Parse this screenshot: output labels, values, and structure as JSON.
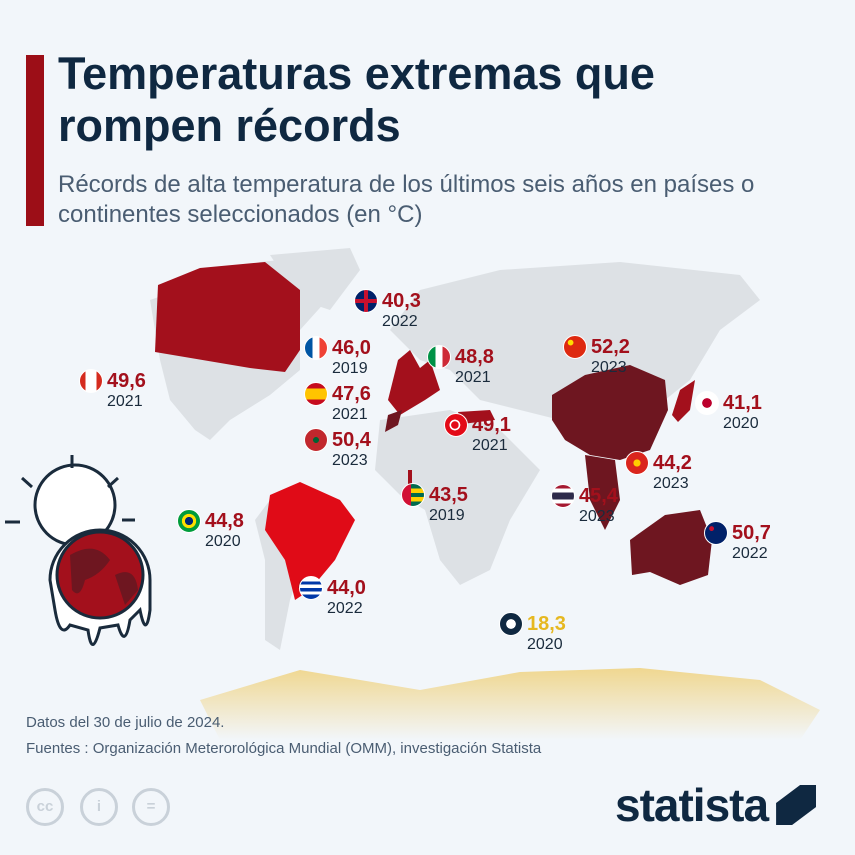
{
  "header": {
    "title": "Temperaturas extremas que rompen récords",
    "subtitle": "Récords de alta temperatura de los últimos seis años en países o continentes seleccionados (en °C)"
  },
  "colors": {
    "record_red": "#a3101c",
    "dark_red": "#6e1620",
    "antarctica_yellow": "#e6b820",
    "land": "#dde1e5",
    "title": "#0f2841"
  },
  "records": [
    {
      "country": "uk",
      "value": "40,3",
      "year": "2022"
    },
    {
      "country": "france",
      "value": "46,0",
      "year": "2019"
    },
    {
      "country": "spain",
      "value": "47,6",
      "year": "2021"
    },
    {
      "country": "morocco",
      "value": "50,4",
      "year": "2023"
    },
    {
      "country": "italy",
      "value": "48,8",
      "year": "2021"
    },
    {
      "country": "turkey",
      "value": "49,1",
      "year": "2021"
    },
    {
      "country": "canada",
      "value": "49,6",
      "year": "2021"
    },
    {
      "country": "china",
      "value": "52,2",
      "year": "2023"
    },
    {
      "country": "japan",
      "value": "41,1",
      "year": "2020"
    },
    {
      "country": "vietnam",
      "value": "44,2",
      "year": "2023"
    },
    {
      "country": "thailand",
      "value": "45,4",
      "year": "2023"
    },
    {
      "country": "togo",
      "value": "43,5",
      "year": "2019"
    },
    {
      "country": "brazil",
      "value": "44,8",
      "year": "2020"
    },
    {
      "country": "uruguay",
      "value": "44,0",
      "year": "2022"
    },
    {
      "country": "australia",
      "value": "50,7",
      "year": "2022"
    },
    {
      "country": "antarctica",
      "value": "18,3",
      "year": "2020"
    }
  ],
  "footer": {
    "date_note": "Datos del 30 de julio de 2024.",
    "sources": "Fuentes : Organización Meterorológica Mundial (OMM), investigación Statista",
    "logo": "statista",
    "license_icons": [
      "cc",
      "by",
      "nd"
    ]
  }
}
